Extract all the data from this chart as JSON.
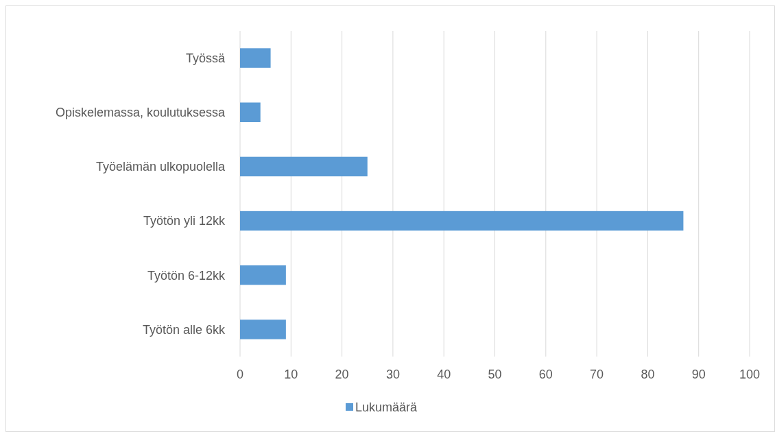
{
  "chart_data": {
    "type": "bar",
    "orientation": "horizontal",
    "categories": [
      "Työssä",
      "Opiskelemassa, koulutuksessa",
      "Työelämän ulkopuolella",
      "Työtön yli 12kk",
      "Työtön 6-12kk",
      "Työtön alle 6kk"
    ],
    "series": [
      {
        "name": "Lukumäärä",
        "color": "#5b9bd5",
        "values": [
          6,
          4,
          25,
          87,
          9,
          9
        ]
      }
    ],
    "xlim": [
      0,
      100
    ],
    "xticks": [
      0,
      10,
      20,
      30,
      40,
      50,
      60,
      70,
      80,
      90,
      100
    ],
    "grid": "x",
    "legend": "bottom"
  }
}
